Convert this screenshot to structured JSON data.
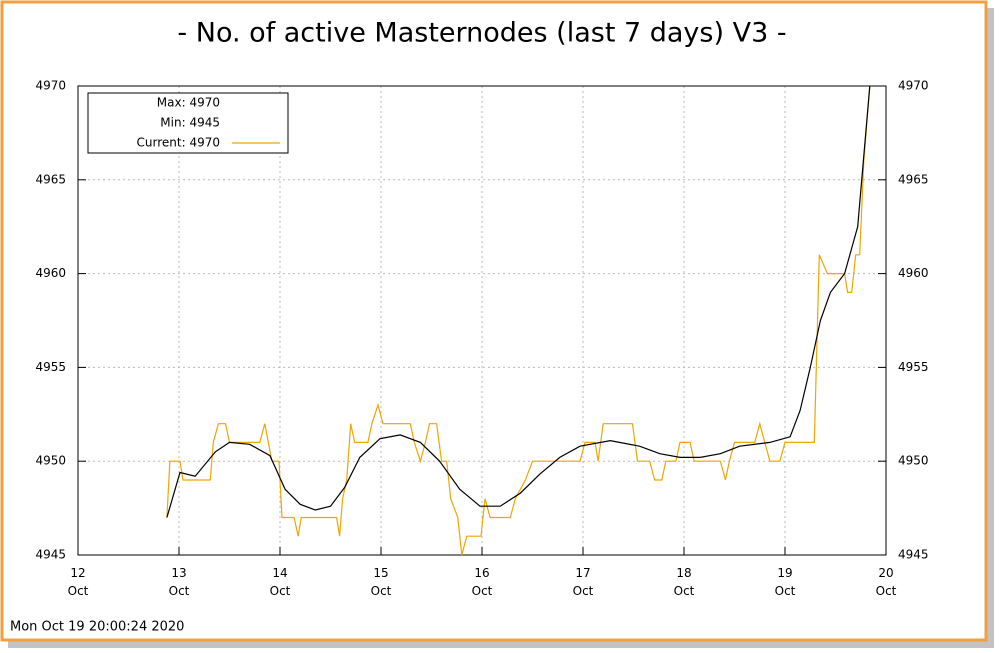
{
  "chart_data": {
    "type": "line",
    "title": "- No. of active Masternodes (last 7 days) V3 -",
    "footer": "Mon Oct 19 20:00:24 2020",
    "legend_text": [
      "Max: 4970",
      "Min: 4945"
    ],
    "xlim": [
      12,
      20
    ],
    "xticks": [
      {
        "value": 12,
        "label": "12 Oct"
      },
      {
        "value": 13,
        "label": "13 Oct"
      },
      {
        "value": 14,
        "label": "14 Oct"
      },
      {
        "value": 15,
        "label": "15 Oct"
      },
      {
        "value": 16,
        "label": "16 Oct"
      },
      {
        "value": 17,
        "label": "17 Oct"
      },
      {
        "value": 18,
        "label": "18 Oct"
      },
      {
        "value": 19,
        "label": "19 Oct"
      },
      {
        "value": 20,
        "label": "20 Oct"
      }
    ],
    "ylim": [
      4945,
      4970
    ],
    "yticks": [
      4945,
      4950,
      4955,
      4960,
      4965,
      4970
    ],
    "y2lim": [
      4945,
      4970
    ],
    "y2ticks": [
      4945,
      4950,
      4955,
      4960,
      4965,
      4970
    ],
    "grid": true,
    "legend": "top-left",
    "series": [
      {
        "name": "Current: 4970",
        "color": "#f0a500",
        "x": [
          12.88,
          12.91,
          13.01,
          13.04,
          13.31,
          13.34,
          13.39,
          13.46,
          13.5,
          13.8,
          13.85,
          13.92,
          13.99,
          14.02,
          14.14,
          14.18,
          14.21,
          14.56,
          14.59,
          14.62,
          14.66,
          14.7,
          14.74,
          14.87,
          14.91,
          14.97,
          15.02,
          15.29,
          15.33,
          15.39,
          15.44,
          15.48,
          15.55,
          15.6,
          15.65,
          15.69,
          15.76,
          15.8,
          15.85,
          15.99,
          16.03,
          16.08,
          16.28,
          16.33,
          16.43,
          16.5,
          16.97,
          17.02,
          17.12,
          17.15,
          17.2,
          17.49,
          17.54,
          17.66,
          17.71,
          17.78,
          17.82,
          17.92,
          17.96,
          18.06,
          18.1,
          18.36,
          18.41,
          18.45,
          18.5,
          18.7,
          18.75,
          18.8,
          18.85,
          18.95,
          19.0,
          19.29,
          19.34,
          19.42,
          19.59,
          19.62,
          19.66,
          19.7,
          19.74,
          19.78,
          19.84
        ],
        "values": [
          4947,
          4950,
          4950,
          4949,
          4949,
          4951,
          4952,
          4952,
          4951,
          4951,
          4952,
          4950,
          4950,
          4947,
          4947,
          4946,
          4947,
          4947,
          4946,
          4948,
          4949,
          4952,
          4951,
          4951,
          4952,
          4953,
          4952,
          4952,
          4951,
          4950,
          4951,
          4952,
          4952,
          4950,
          4950,
          4948,
          4947,
          4945,
          4946,
          4946,
          4948,
          4947,
          4947,
          4948,
          4949,
          4950,
          4950,
          4951,
          4951,
          4950,
          4952,
          4952,
          4950,
          4950,
          4949,
          4949,
          4950,
          4950,
          4951,
          4951,
          4950,
          4950,
          4949,
          4950,
          4951,
          4951,
          4952,
          4951,
          4950,
          4950,
          4951,
          4951,
          4961,
          4960,
          4960,
          4959,
          4959,
          4961,
          4961,
          4966,
          4970
        ]
      },
      {
        "color": "#000000",
        "x": [
          12.88,
          13.01,
          13.16,
          13.36,
          13.5,
          13.7,
          13.9,
          14.05,
          14.2,
          14.35,
          14.5,
          14.64,
          14.79,
          14.99,
          15.19,
          15.39,
          15.58,
          15.78,
          15.98,
          16.18,
          16.38,
          16.57,
          16.77,
          16.97,
          17.27,
          17.56,
          17.76,
          17.96,
          18.16,
          18.36,
          18.55,
          18.85,
          19.05,
          19.15,
          19.25,
          19.35,
          19.45,
          19.59,
          19.72,
          19.84
        ],
        "values": [
          4947,
          4949.4,
          4949.2,
          4950.5,
          4951,
          4950.9,
          4950.3,
          4948.5,
          4947.7,
          4947.4,
          4947.6,
          4948.6,
          4950.2,
          4951.2,
          4951.4,
          4951,
          4950,
          4948.5,
          4947.6,
          4947.6,
          4948.3,
          4949.3,
          4950.2,
          4950.8,
          4951.1,
          4950.8,
          4950.4,
          4950.2,
          4950.2,
          4950.4,
          4950.8,
          4951,
          4951.3,
          4952.7,
          4955,
          4957.5,
          4959,
          4960,
          4962.5,
          4970
        ]
      }
    ]
  }
}
